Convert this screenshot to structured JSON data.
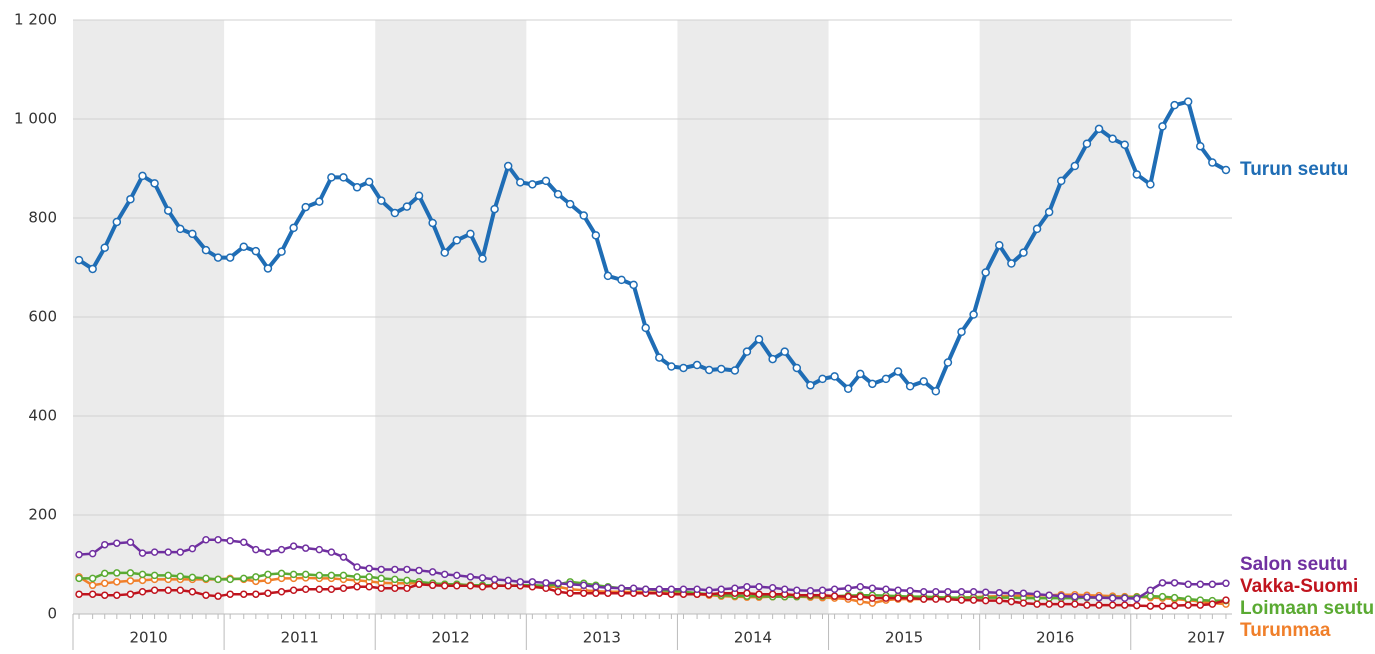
{
  "chart_data": {
    "type": "line",
    "x": [
      2010.04,
      2010.13,
      2010.21,
      2010.29,
      2010.38,
      2010.46,
      2010.54,
      2010.63,
      2010.71,
      2010.79,
      2010.88,
      2010.96,
      2011.04,
      2011.13,
      2011.21,
      2011.29,
      2011.38,
      2011.46,
      2011.54,
      2011.63,
      2011.71,
      2011.79,
      2011.88,
      2011.96,
      2012.04,
      2012.13,
      2012.21,
      2012.29,
      2012.38,
      2012.46,
      2012.54,
      2012.63,
      2012.71,
      2012.79,
      2012.88,
      2012.96,
      2013.04,
      2013.13,
      2013.21,
      2013.29,
      2013.38,
      2013.46,
      2013.54,
      2013.63,
      2013.71,
      2013.79,
      2013.88,
      2013.96,
      2014.04,
      2014.13,
      2014.21,
      2014.29,
      2014.38,
      2014.46,
      2014.54,
      2014.63,
      2014.71,
      2014.79,
      2014.88,
      2014.96,
      2015.04,
      2015.13,
      2015.21,
      2015.29,
      2015.38,
      2015.46,
      2015.54,
      2015.63,
      2015.71,
      2015.79,
      2015.88,
      2015.96,
      2016.04,
      2016.13,
      2016.21,
      2016.29,
      2016.38,
      2016.46,
      2016.54,
      2016.63,
      2016.71,
      2016.79,
      2016.88,
      2016.96,
      2017.04,
      2017.13,
      2017.21,
      2017.29,
      2017.38,
      2017.46,
      2017.54,
      2017.63
    ],
    "series": [
      {
        "name": "Turun seutu",
        "color": "#1f6db5",
        "values": [
          715,
          697,
          740,
          792,
          838,
          885,
          870,
          815,
          778,
          768,
          735,
          720,
          720,
          742,
          733,
          698,
          732,
          780,
          822,
          833,
          882,
          882,
          862,
          873,
          835,
          810,
          823,
          845,
          790,
          730,
          755,
          768,
          718,
          818,
          905,
          872,
          868,
          875,
          848,
          828,
          805,
          765,
          683,
          675,
          665,
          578,
          518,
          500,
          497,
          503,
          493,
          495,
          492,
          530,
          555,
          515,
          530,
          497,
          462,
          475,
          480,
          455,
          485,
          465,
          475,
          490,
          460,
          470,
          450,
          508,
          570,
          605,
          690,
          745,
          708,
          730,
          778,
          812,
          875,
          905,
          950,
          980,
          960,
          948,
          888,
          868,
          985,
          1028,
          1035,
          945,
          912,
          897
        ]
      },
      {
        "name": "Salon seutu",
        "color": "#7030a0",
        "values": [
          120,
          122,
          140,
          143,
          145,
          123,
          125,
          125,
          125,
          132,
          150,
          150,
          148,
          145,
          130,
          125,
          130,
          137,
          133,
          130,
          125,
          115,
          95,
          92,
          90,
          90,
          90,
          88,
          85,
          80,
          78,
          75,
          73,
          70,
          68,
          65,
          65,
          63,
          62,
          60,
          58,
          55,
          53,
          52,
          52,
          50,
          50,
          50,
          50,
          50,
          48,
          50,
          52,
          55,
          55,
          53,
          50,
          48,
          47,
          48,
          50,
          52,
          55,
          52,
          50,
          48,
          47,
          45,
          45,
          45,
          45,
          45,
          44,
          43,
          42,
          42,
          40,
          38,
          36,
          35,
          34,
          33,
          32,
          32,
          31,
          48,
          63,
          63,
          60,
          60,
          60,
          62
        ]
      },
      {
        "name": "Vakka-Suomi",
        "color": "#c0141e",
        "values": [
          40,
          40,
          38,
          38,
          40,
          45,
          48,
          48,
          48,
          45,
          38,
          36,
          40,
          40,
          40,
          42,
          45,
          48,
          50,
          50,
          50,
          52,
          55,
          55,
          52,
          52,
          52,
          60,
          58,
          57,
          57,
          57,
          55,
          57,
          57,
          57,
          55,
          52,
          45,
          42,
          42,
          42,
          42,
          42,
          42,
          42,
          42,
          40,
          40,
          40,
          40,
          42,
          42,
          42,
          40,
          40,
          40,
          38,
          38,
          38,
          36,
          35,
          35,
          32,
          32,
          32,
          32,
          30,
          30,
          30,
          28,
          28,
          27,
          27,
          25,
          22,
          20,
          20,
          20,
          20,
          18,
          18,
          18,
          18,
          17,
          16,
          16,
          17,
          18,
          18,
          20,
          28
        ]
      },
      {
        "name": "Loimaan seutu",
        "color": "#5aaa32",
        "values": [
          72,
          72,
          82,
          83,
          83,
          80,
          78,
          78,
          76,
          74,
          72,
          70,
          70,
          72,
          75,
          80,
          82,
          80,
          80,
          78,
          78,
          78,
          75,
          75,
          72,
          70,
          68,
          65,
          62,
          60,
          60,
          58,
          58,
          58,
          57,
          58,
          58,
          57,
          60,
          65,
          62,
          58,
          55,
          52,
          50,
          50,
          48,
          47,
          45,
          42,
          40,
          38,
          37,
          36,
          36,
          35,
          35,
          35,
          36,
          36,
          36,
          37,
          38,
          38,
          37,
          36,
          35,
          35,
          34,
          33,
          33,
          33,
          33,
          33,
          33,
          32,
          32,
          32,
          32,
          32,
          33,
          33,
          33,
          33,
          34,
          36,
          35,
          33,
          30,
          28,
          27,
          27
        ]
      },
      {
        "name": "Turunmaa",
        "color": "#f07f2a",
        "values": [
          75,
          58,
          62,
          65,
          67,
          68,
          70,
          70,
          70,
          70,
          70,
          70,
          72,
          70,
          66,
          68,
          72,
          72,
          73,
          72,
          72,
          70,
          68,
          66,
          63,
          62,
          62,
          62,
          62,
          60,
          60,
          58,
          57,
          57,
          57,
          57,
          56,
          55,
          55,
          50,
          48,
          46,
          45,
          45,
          44,
          44,
          43,
          42,
          42,
          40,
          38,
          36,
          35,
          34,
          34,
          35,
          35,
          35,
          34,
          33,
          32,
          30,
          25,
          22,
          28,
          30,
          30,
          30,
          32,
          32,
          33,
          34,
          35,
          36,
          36,
          37,
          38,
          38,
          39,
          39,
          38,
          37,
          36,
          35,
          35,
          33,
          32,
          30,
          28,
          25,
          22,
          20
        ]
      }
    ],
    "xlim": [
      2010,
      2017.67
    ],
    "xticks": [
      {
        "value": 2010.5,
        "label": "2010"
      },
      {
        "value": 2011.5,
        "label": "2011"
      },
      {
        "value": 2012.5,
        "label": "2012"
      },
      {
        "value": 2013.5,
        "label": "2013"
      },
      {
        "value": 2014.5,
        "label": "2014"
      },
      {
        "value": 2015.5,
        "label": "2015"
      },
      {
        "value": 2016.5,
        "label": "2016"
      },
      {
        "value": 2017.5,
        "label": "2017"
      }
    ],
    "ylim": [
      0,
      1200
    ],
    "yticks": [
      0,
      200,
      400,
      600,
      800,
      {
        "value": 1000,
        "label": "1 000"
      },
      {
        "value": 1200,
        "label": "1 200"
      }
    ],
    "grid": true,
    "shade_alternate_years": true,
    "legend": "line-end"
  }
}
